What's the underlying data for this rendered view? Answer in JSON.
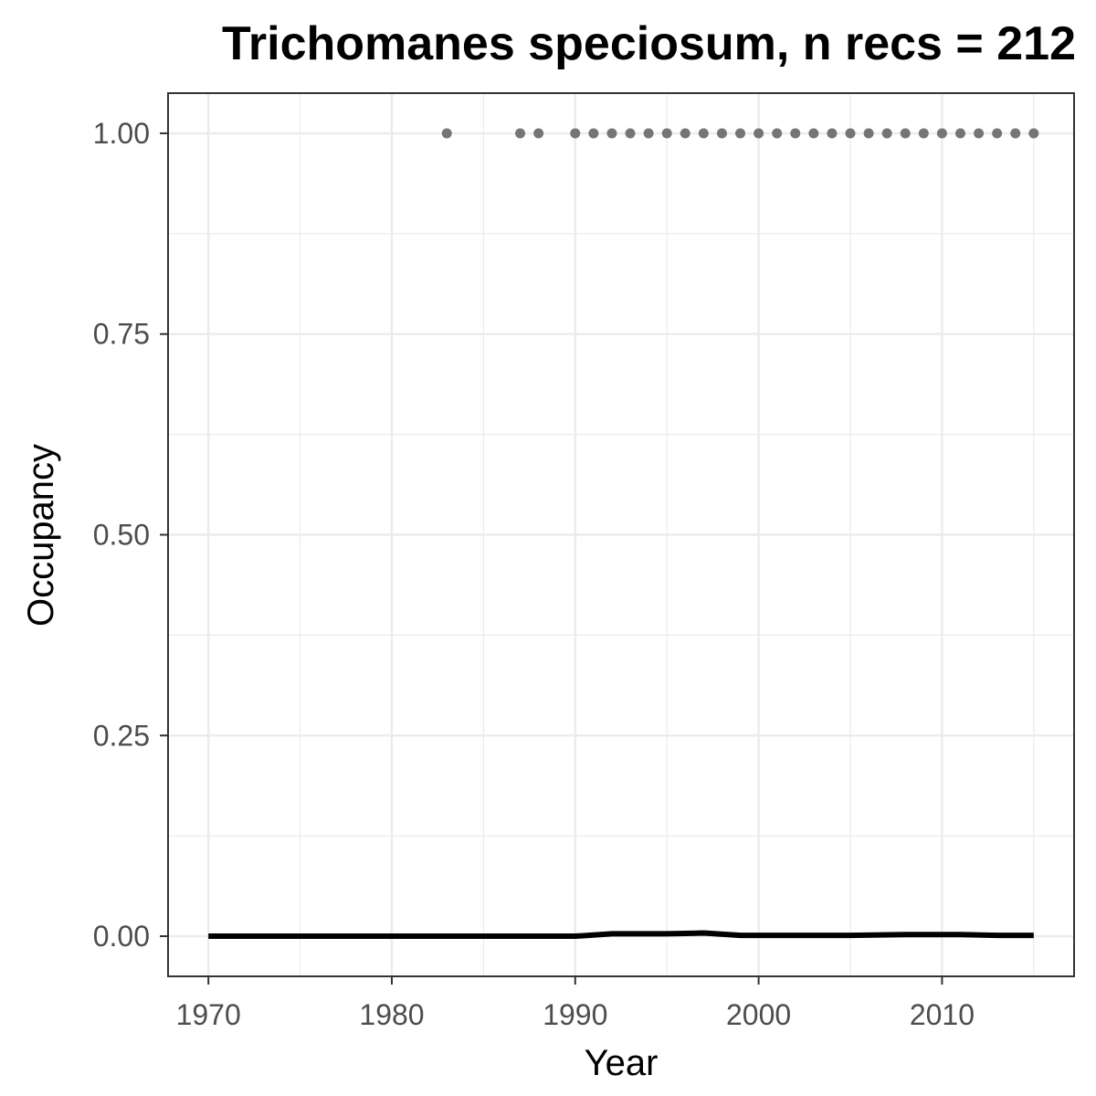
{
  "chart_data": {
    "type": "scatter",
    "title": "Trichomanes speciosum, n recs = 212",
    "xlabel": "Year",
    "ylabel": "Occupancy",
    "xlim": [
      1967.8,
      2017.2
    ],
    "ylim": [
      -0.05,
      1.05
    ],
    "x_ticks": [
      1970,
      1980,
      1990,
      2000,
      2010
    ],
    "x_tick_labels": [
      "1970",
      "1980",
      "1990",
      "2000",
      "2010"
    ],
    "y_ticks": [
      0,
      0.25,
      0.5,
      0.75,
      1
    ],
    "y_tick_labels": [
      "0.00",
      "0.25",
      "0.50",
      "0.75",
      "1.00"
    ],
    "x_minor_ticks": [
      1975,
      1985,
      1995,
      2005,
      2015
    ],
    "y_minor_ticks": [
      0.125,
      0.375,
      0.625,
      0.875
    ],
    "grid": true,
    "colors": {
      "points": "#757575",
      "line": "#000000",
      "grid": "#ebebeb",
      "panel_border": "#333333"
    },
    "series": [
      {
        "kind": "points",
        "x": [
          1983,
          1987,
          1988,
          1990,
          1991,
          1992,
          1993,
          1994,
          1995,
          1996,
          1997,
          1998,
          1999,
          2000,
          2001,
          2002,
          2003,
          2004,
          2005,
          2006,
          2007,
          2008,
          2009,
          2010,
          2011,
          2012,
          2013,
          2014,
          2015
        ],
        "y": [
          1,
          1,
          1,
          1,
          1,
          1,
          1,
          1,
          1,
          1,
          1,
          1,
          1,
          1,
          1,
          1,
          1,
          1,
          1,
          1,
          1,
          1,
          1,
          1,
          1,
          1,
          1,
          1,
          1
        ]
      },
      {
        "kind": "line",
        "x": [
          1970,
          1975,
          1980,
          1985,
          1990,
          1992,
          1995,
          1997,
          1999,
          2002,
          2005,
          2008,
          2011,
          2013,
          2015
        ],
        "y": [
          0,
          0,
          0,
          0,
          0,
          0.003,
          0.003,
          0.004,
          0.001,
          0.001,
          0.001,
          0.002,
          0.002,
          0.001,
          0.001
        ]
      }
    ]
  }
}
